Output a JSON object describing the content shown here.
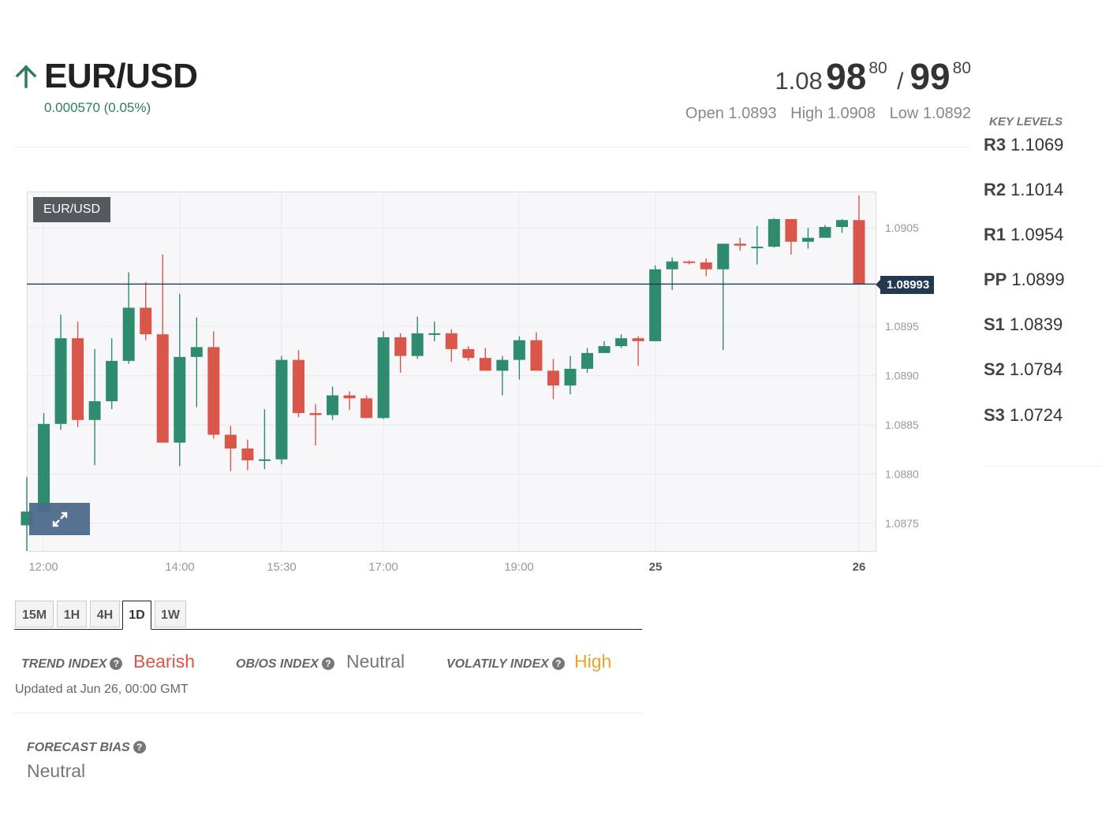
{
  "header": {
    "pair": "EUR/USD",
    "change": "0.000570 (0.05%)",
    "direction_icon": "arrow-up-icon",
    "up_color": "#2e7d63"
  },
  "quote": {
    "bid_prefix": "1.08",
    "bid_big": "98",
    "bid_pip": "80",
    "separator": "/",
    "ask_big": "99",
    "ask_pip": "80"
  },
  "ohl": {
    "open": "Open 1.0893",
    "high": "High 1.0908",
    "low": "Low 1.0892"
  },
  "key_levels": {
    "title": "KEY LEVELS",
    "levels": [
      {
        "name": "R3",
        "value": "1.1069"
      },
      {
        "name": "R2",
        "value": "1.1014"
      },
      {
        "name": "R1",
        "value": "1.0954"
      },
      {
        "name": "PP",
        "value": "1.0899"
      },
      {
        "name": "S1",
        "value": "1.0839"
      },
      {
        "name": "S2",
        "value": "1.0784"
      },
      {
        "name": "S3",
        "value": "1.0724"
      }
    ]
  },
  "chart": {
    "symbol": "EUR/USD",
    "current_price": "1.08993",
    "expand_icon": "expand-icon"
  },
  "chart_data": {
    "type": "candlestick",
    "ylim": [
      1.08722,
      1.09087
    ],
    "y_ticks": [
      "1.0875",
      "1.0880",
      "1.0885",
      "1.0890",
      "1.0895",
      "1.0905"
    ],
    "x_tick_labels": [
      "12:00",
      "14:00",
      "15:30",
      "17:00",
      "19:00",
      "25",
      "26"
    ],
    "current_price": 1.08993,
    "up_color": "#2e8b6e",
    "down_color": "#d9574a",
    "candles": [
      {
        "o": 1.08748,
        "h": 1.08797,
        "l": 1.08722,
        "c": 1.08762
      },
      {
        "o": 1.08762,
        "h": 1.08862,
        "l": 1.08758,
        "c": 1.08851
      },
      {
        "o": 1.08851,
        "h": 1.08962,
        "l": 1.08845,
        "c": 1.08938
      },
      {
        "o": 1.08938,
        "h": 1.08955,
        "l": 1.08848,
        "c": 1.08855
      },
      {
        "o": 1.08855,
        "h": 1.08927,
        "l": 1.08809,
        "c": 1.08874
      },
      {
        "o": 1.08874,
        "h": 1.08938,
        "l": 1.08866,
        "c": 1.08915
      },
      {
        "o": 1.08915,
        "h": 1.09005,
        "l": 1.08912,
        "c": 1.08969
      },
      {
        "o": 1.08969,
        "h": 1.08995,
        "l": 1.08936,
        "c": 1.08942
      },
      {
        "o": 1.08942,
        "h": 1.09023,
        "l": 1.08832,
        "c": 1.08832
      },
      {
        "o": 1.08832,
        "h": 1.08983,
        "l": 1.08808,
        "c": 1.08919
      },
      {
        "o": 1.08919,
        "h": 1.08959,
        "l": 1.08868,
        "c": 1.08929
      },
      {
        "o": 1.08929,
        "h": 1.08945,
        "l": 1.08836,
        "c": 1.0884
      },
      {
        "o": 1.0884,
        "h": 1.08849,
        "l": 1.08803,
        "c": 1.08826
      },
      {
        "o": 1.08826,
        "h": 1.08835,
        "l": 1.08804,
        "c": 1.08814
      },
      {
        "o": 1.08814,
        "h": 1.08866,
        "l": 1.08805,
        "c": 1.08815
      },
      {
        "o": 1.08815,
        "h": 1.0892,
        "l": 1.0881,
        "c": 1.08916
      },
      {
        "o": 1.08916,
        "h": 1.08926,
        "l": 1.08858,
        "c": 1.08862
      },
      {
        "o": 1.08862,
        "h": 1.08871,
        "l": 1.08829,
        "c": 1.0886
      },
      {
        "o": 1.0886,
        "h": 1.08889,
        "l": 1.08855,
        "c": 1.0888
      },
      {
        "o": 1.0888,
        "h": 1.08884,
        "l": 1.08865,
        "c": 1.08877
      },
      {
        "o": 1.08877,
        "h": 1.0888,
        "l": 1.08857,
        "c": 1.08857
      },
      {
        "o": 1.08857,
        "h": 1.08945,
        "l": 1.08856,
        "c": 1.08939
      },
      {
        "o": 1.08939,
        "h": 1.08943,
        "l": 1.08903,
        "c": 1.0892
      },
      {
        "o": 1.0892,
        "h": 1.0896,
        "l": 1.08917,
        "c": 1.08943
      },
      {
        "o": 1.08943,
        "h": 1.08955,
        "l": 1.08935,
        "c": 1.08943
      },
      {
        "o": 1.08943,
        "h": 1.08947,
        "l": 1.08914,
        "c": 1.08927
      },
      {
        "o": 1.08927,
        "h": 1.0893,
        "l": 1.08915,
        "c": 1.08918
      },
      {
        "o": 1.08918,
        "h": 1.08928,
        "l": 1.08907,
        "c": 1.08905
      },
      {
        "o": 1.08905,
        "h": 1.0892,
        "l": 1.0888,
        "c": 1.08916
      },
      {
        "o": 1.08916,
        "h": 1.0894,
        "l": 1.08896,
        "c": 1.08936
      },
      {
        "o": 1.08936,
        "h": 1.08944,
        "l": 1.08905,
        "c": 1.08905
      },
      {
        "o": 1.08905,
        "h": 1.08917,
        "l": 1.08876,
        "c": 1.0889
      },
      {
        "o": 1.0889,
        "h": 1.0892,
        "l": 1.08881,
        "c": 1.08907
      },
      {
        "o": 1.08907,
        "h": 1.08928,
        "l": 1.08903,
        "c": 1.08923
      },
      {
        "o": 1.08923,
        "h": 1.08935,
        "l": 1.08924,
        "c": 1.0893
      },
      {
        "o": 1.0893,
        "h": 1.08942,
        "l": 1.08928,
        "c": 1.08938
      },
      {
        "o": 1.08938,
        "h": 1.0894,
        "l": 1.0891,
        "c": 1.08935
      },
      {
        "o": 1.08935,
        "h": 1.09012,
        "l": 1.08935,
        "c": 1.09008
      },
      {
        "o": 1.09008,
        "h": 1.0902,
        "l": 1.08987,
        "c": 1.09016
      },
      {
        "o": 1.09016,
        "h": 1.09017,
        "l": 1.09013,
        "c": 1.09015
      },
      {
        "o": 1.09015,
        "h": 1.09019,
        "l": 1.09001,
        "c": 1.09008
      },
      {
        "o": 1.09008,
        "h": 1.09034,
        "l": 1.08926,
        "c": 1.09034
      },
      {
        "o": 1.09034,
        "h": 1.0904,
        "l": 1.09027,
        "c": 1.09032
      },
      {
        "o": 1.09031,
        "h": 1.09052,
        "l": 1.09013,
        "c": 1.09031
      },
      {
        "o": 1.09031,
        "h": 1.0906,
        "l": 1.0903,
        "c": 1.09059
      },
      {
        "o": 1.09059,
        "h": 1.09058,
        "l": 1.09023,
        "c": 1.09036
      },
      {
        "o": 1.09036,
        "h": 1.0905,
        "l": 1.09029,
        "c": 1.0904
      },
      {
        "o": 1.0904,
        "h": 1.09053,
        "l": 1.09043,
        "c": 1.09051
      },
      {
        "o": 1.09051,
        "h": 1.09059,
        "l": 1.09045,
        "c": 1.09058
      },
      {
        "o": 1.09058,
        "h": 1.09083,
        "l": 1.08993,
        "c": 1.08993
      }
    ]
  },
  "timeframes": {
    "items": [
      "15M",
      "1H",
      "4H",
      "1D",
      "1W"
    ],
    "active": "1D"
  },
  "indices": {
    "trend_label": "TREND INDEX",
    "trend_value": "Bearish",
    "trend_color": "#d9574a",
    "obos_label": "OB/OS INDEX",
    "obos_value": "Neutral",
    "obos_color": "#777777",
    "volatility_label": "VOLATILY INDEX",
    "volatility_value": "High",
    "volatility_color": "#e8a525",
    "help_icon": "question-circle-icon",
    "updated": "Updated at Jun 26, 00:00 GMT"
  },
  "forecast": {
    "label": "FORECAST BIAS",
    "value": "Neutral"
  }
}
